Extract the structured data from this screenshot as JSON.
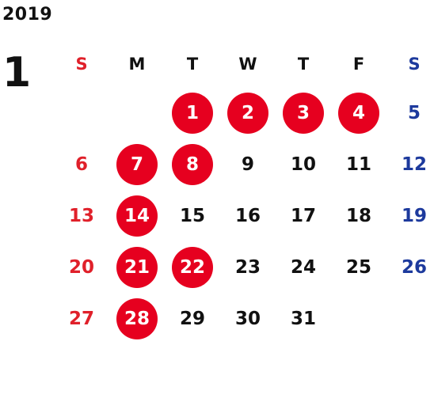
{
  "calendar": {
    "year": "2019",
    "month": "1",
    "weekdays": [
      "S",
      "M",
      "T",
      "W",
      "T",
      "F",
      "S"
    ],
    "weeks": [
      [
        "",
        "",
        "1",
        "2",
        "3",
        "4",
        "5"
      ],
      [
        "6",
        "7",
        "8",
        "9",
        "10",
        "11",
        "12"
      ],
      [
        "13",
        "14",
        "15",
        "16",
        "17",
        "18",
        "19"
      ],
      [
        "20",
        "21",
        "22",
        "23",
        "24",
        "25",
        "26"
      ],
      [
        "27",
        "28",
        "29",
        "30",
        "31",
        "",
        ""
      ]
    ],
    "highlighted_days": [
      "1",
      "2",
      "3",
      "4",
      "7",
      "8",
      "14",
      "21",
      "22",
      "28"
    ]
  },
  "colors": {
    "sunday": "#e0202a",
    "saturday": "#1d3a9d",
    "weekday": "#111111",
    "highlight_circle": "#e6001f",
    "highlight_text": "#ffffff"
  }
}
